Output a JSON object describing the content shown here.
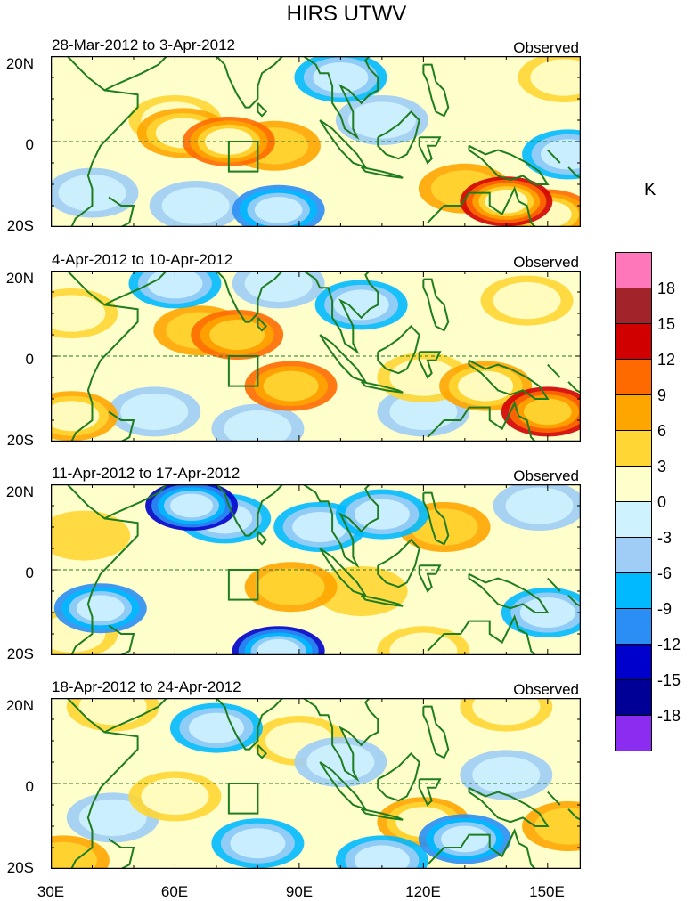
{
  "title": "HIRS UTWV",
  "units": "K",
  "panels": [
    {
      "date_range": "28-Mar-2012 to 3-Apr-2012",
      "status": "Observed",
      "anomalies": [
        {
          "lon": 73,
          "lat": 0,
          "level": 10
        },
        {
          "lon": 62,
          "lat": 2,
          "level": 7
        },
        {
          "lon": 84,
          "lat": -1,
          "level": 6
        },
        {
          "lon": 60,
          "lat": 5,
          "level": 4
        },
        {
          "lon": 140,
          "lat": -14,
          "level": 13
        },
        {
          "lon": 130,
          "lat": -11,
          "level": 6
        },
        {
          "lon": 150,
          "lat": -17,
          "level": 11
        },
        {
          "lon": 100,
          "lat": 15,
          "level": -8
        },
        {
          "lon": 85,
          "lat": -16,
          "level": -10
        },
        {
          "lon": 65,
          "lat": -15,
          "level": -6
        },
        {
          "lon": 155,
          "lat": -3,
          "level": -8
        },
        {
          "lon": 40,
          "lat": -12,
          "level": -5
        },
        {
          "lon": 110,
          "lat": 5,
          "level": -4
        },
        {
          "lon": 130,
          "lat": 10,
          "level": 2
        },
        {
          "lon": 154,
          "lat": 15,
          "level": 4
        },
        {
          "lon": 35,
          "lat": 12,
          "level": 2
        }
      ]
    },
    {
      "date_range": "4-Apr-2012 to 10-Apr-2012",
      "status": "Observed",
      "anomalies": [
        {
          "lon": 75,
          "lat": 5,
          "level": 9
        },
        {
          "lon": 88,
          "lat": -7,
          "level": 9
        },
        {
          "lon": 66,
          "lat": 6,
          "level": 6
        },
        {
          "lon": 150,
          "lat": -13,
          "level": 12
        },
        {
          "lon": 135,
          "lat": -7,
          "level": 8
        },
        {
          "lon": 120,
          "lat": -5,
          "level": 5
        },
        {
          "lon": 35,
          "lat": -14,
          "level": 8
        },
        {
          "lon": 35,
          "lat": 10,
          "level": 4
        },
        {
          "lon": 145,
          "lat": 13,
          "level": 4
        },
        {
          "lon": 60,
          "lat": 17,
          "level": -7
        },
        {
          "lon": 85,
          "lat": 17,
          "level": -5
        },
        {
          "lon": 105,
          "lat": 12,
          "level": -7
        },
        {
          "lon": 80,
          "lat": -17,
          "level": -5
        },
        {
          "lon": 120,
          "lat": -13,
          "level": -4
        },
        {
          "lon": 55,
          "lat": -13,
          "level": -4
        }
      ]
    },
    {
      "date_range": "11-Apr-2012 to 17-Apr-2012",
      "status": "Observed",
      "anomalies": [
        {
          "lon": 64,
          "lat": 15,
          "level": -15
        },
        {
          "lon": 72,
          "lat": 12,
          "level": -8
        },
        {
          "lon": 85,
          "lat": -19,
          "level": -14
        },
        {
          "lon": 95,
          "lat": 10,
          "level": -9
        },
        {
          "lon": 110,
          "lat": 13,
          "level": -9
        },
        {
          "lon": 42,
          "lat": -9,
          "level": -10
        },
        {
          "lon": 150,
          "lat": -10,
          "level": -8
        },
        {
          "lon": 148,
          "lat": 15,
          "level": -5
        },
        {
          "lon": 88,
          "lat": -4,
          "level": 6
        },
        {
          "lon": 125,
          "lat": 10,
          "level": 6
        },
        {
          "lon": 105,
          "lat": -5,
          "level": 3
        },
        {
          "lon": 120,
          "lat": -19,
          "level": 5
        },
        {
          "lon": 35,
          "lat": -15,
          "level": 5
        },
        {
          "lon": 38,
          "lat": 8,
          "level": 3
        },
        {
          "lon": 150,
          "lat": 3,
          "level": 2
        }
      ]
    },
    {
      "date_range": "18-Apr-2012 to 24-Apr-2012",
      "status": "Observed",
      "anomalies": [
        {
          "lon": 130,
          "lat": -13,
          "level": -10
        },
        {
          "lon": 110,
          "lat": -18,
          "level": -9
        },
        {
          "lon": 70,
          "lat": 13,
          "level": -7
        },
        {
          "lon": 80,
          "lat": -14,
          "level": -8
        },
        {
          "lon": 100,
          "lat": 5,
          "level": -5
        },
        {
          "lon": 140,
          "lat": 2,
          "level": -5
        },
        {
          "lon": 45,
          "lat": -8,
          "level": -5
        },
        {
          "lon": 120,
          "lat": -9,
          "level": 8
        },
        {
          "lon": 90,
          "lat": 10,
          "level": 4
        },
        {
          "lon": 60,
          "lat": -3,
          "level": 5
        },
        {
          "lon": 33,
          "lat": -18,
          "level": 6
        },
        {
          "lon": 45,
          "lat": 18,
          "level": 5
        },
        {
          "lon": 140,
          "lat": 18,
          "level": 4
        },
        {
          "lon": 155,
          "lat": -10,
          "level": 6
        },
        {
          "lon": 30,
          "lat": 5,
          "level": 2
        }
      ]
    }
  ],
  "y_axis": {
    "north_label": "20N",
    "equator_label": "0",
    "south_label": "20S"
  },
  "x_axis": {
    "labels": [
      "30E",
      "60E",
      "90E",
      "120E",
      "150E"
    ],
    "lons": [
      30,
      60,
      90,
      120,
      150
    ]
  },
  "colorbar": {
    "labels": [
      "18",
      "15",
      "12",
      "9",
      "6",
      "3",
      "0",
      "-3",
      "-6",
      "-9",
      "-12",
      "-15",
      "-18"
    ],
    "colors": [
      "#ff77bb",
      "#a3232a",
      "#d10000",
      "#ff6a00",
      "#ffa500",
      "#ffd633",
      "#ffffcc",
      "#cff2ff",
      "#9fcdf6",
      "#00b9ff",
      "#2a8ef4",
      "#0000cc",
      "#000096",
      "#8b2df0"
    ]
  },
  "palette": {
    "coast": "#1e7d1e",
    "levels": [
      -18,
      -15,
      -12,
      -9,
      -6,
      -3,
      0,
      3,
      6,
      9,
      12,
      15,
      18
    ]
  }
}
